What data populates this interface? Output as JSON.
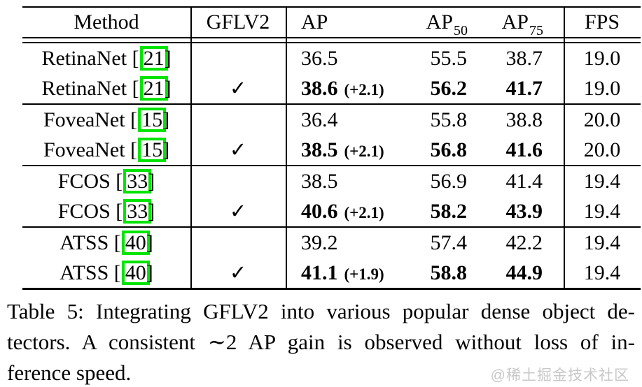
{
  "table": {
    "headers": {
      "method": "Method",
      "gflv2": "GFLV2",
      "ap": "AP",
      "ap50_base": "AP",
      "ap50_sub": "50",
      "ap75_base": "AP",
      "ap75_sub": "75",
      "fps": "FPS"
    },
    "checkmark_symbol": "✓",
    "bracket_open": "[",
    "bracket_close": "]",
    "sections": [
      {
        "rows": [
          {
            "method": "RetinaNet",
            "cite": "21",
            "checked": false,
            "ap": "36.5",
            "gain": "",
            "ap50": "55.5",
            "ap75": "38.7",
            "fps": "19.0",
            "bold": false
          },
          {
            "method": "RetinaNet",
            "cite": "21",
            "checked": true,
            "ap": "38.6",
            "gain": "(+2.1)",
            "ap50": "56.2",
            "ap75": "41.7",
            "fps": "19.0",
            "bold": true
          }
        ]
      },
      {
        "rows": [
          {
            "method": "FoveaNet",
            "cite": "15",
            "checked": false,
            "ap": "36.4",
            "gain": "",
            "ap50": "55.8",
            "ap75": "38.8",
            "fps": "20.0",
            "bold": false
          },
          {
            "method": "FoveaNet",
            "cite": "15",
            "checked": true,
            "ap": "38.5",
            "gain": "(+2.1)",
            "ap50": "56.8",
            "ap75": "41.6",
            "fps": "20.0",
            "bold": true
          }
        ]
      },
      {
        "rows": [
          {
            "method": "FCOS",
            "cite": "33",
            "checked": false,
            "ap": "38.5",
            "gain": "",
            "ap50": "56.9",
            "ap75": "41.4",
            "fps": "19.4",
            "bold": false
          },
          {
            "method": "FCOS",
            "cite": "33",
            "checked": true,
            "ap": "40.6",
            "gain": "(+2.1)",
            "ap50": "58.2",
            "ap75": "43.9",
            "fps": "19.4",
            "bold": true
          }
        ]
      },
      {
        "rows": [
          {
            "method": "ATSS",
            "cite": "40",
            "checked": false,
            "ap": "39.2",
            "gain": "",
            "ap50": "57.4",
            "ap75": "42.2",
            "fps": "19.4",
            "bold": false
          },
          {
            "method": "ATSS",
            "cite": "40",
            "checked": true,
            "ap": "41.1",
            "gain": "(+1.9)",
            "ap50": "58.8",
            "ap75": "44.9",
            "fps": "19.4",
            "bold": true
          }
        ]
      }
    ]
  },
  "caption": {
    "lines": [
      "Table 5: Integrating GFLV2 into various popular dense object de-",
      "tectors.  A consistent ∼2 AP gain is observed without loss of in-",
      "ference speed."
    ]
  },
  "watermark": {
    "text": "@稀土掘金技术社区"
  },
  "colors": {
    "citation_box": "#00e400",
    "watermark_gray": "#c8c8c8",
    "rule_black": "#000000"
  }
}
